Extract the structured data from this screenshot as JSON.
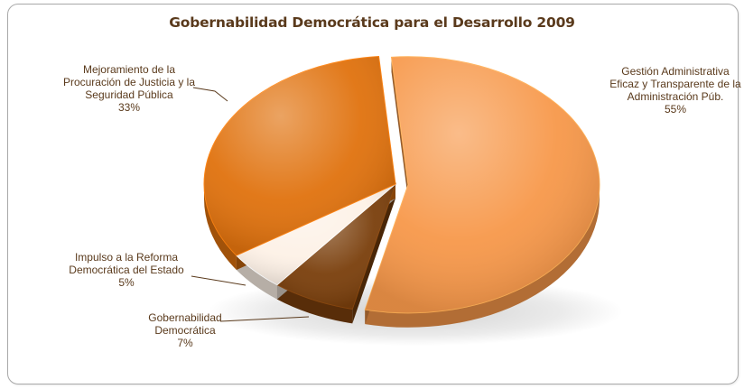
{
  "chart_data": {
    "type": "pie",
    "title": "Gobernabilidad Democrática para el Desarrollo 2009",
    "slices": [
      {
        "label_lines": [
          "Gestión Administrativa",
          "Eficaz y Transparente de la",
          "Administración Púb."
        ],
        "value": 55,
        "pct_label": "55%",
        "color": "#f7984a",
        "exploded": true
      },
      {
        "label_lines": [
          "Gobernabilidad",
          "Democrática"
        ],
        "value": 7,
        "pct_label": "7%",
        "color": "#7a3f0c",
        "exploded": false
      },
      {
        "label_lines": [
          "Impulso a la Reforma",
          "Democrática del Estado"
        ],
        "value": 5,
        "pct_label": "5%",
        "color": "#fdf1e6",
        "exploded": false
      },
      {
        "label_lines": [
          "Mejoramiento de la",
          "Procuración de Justicia y la",
          "Seguridad Pública"
        ],
        "value": 33,
        "pct_label": "33%",
        "color": "#e0720e",
        "exploded": false
      }
    ],
    "legend": "none",
    "label_text_color": "#5a3a1c"
  }
}
